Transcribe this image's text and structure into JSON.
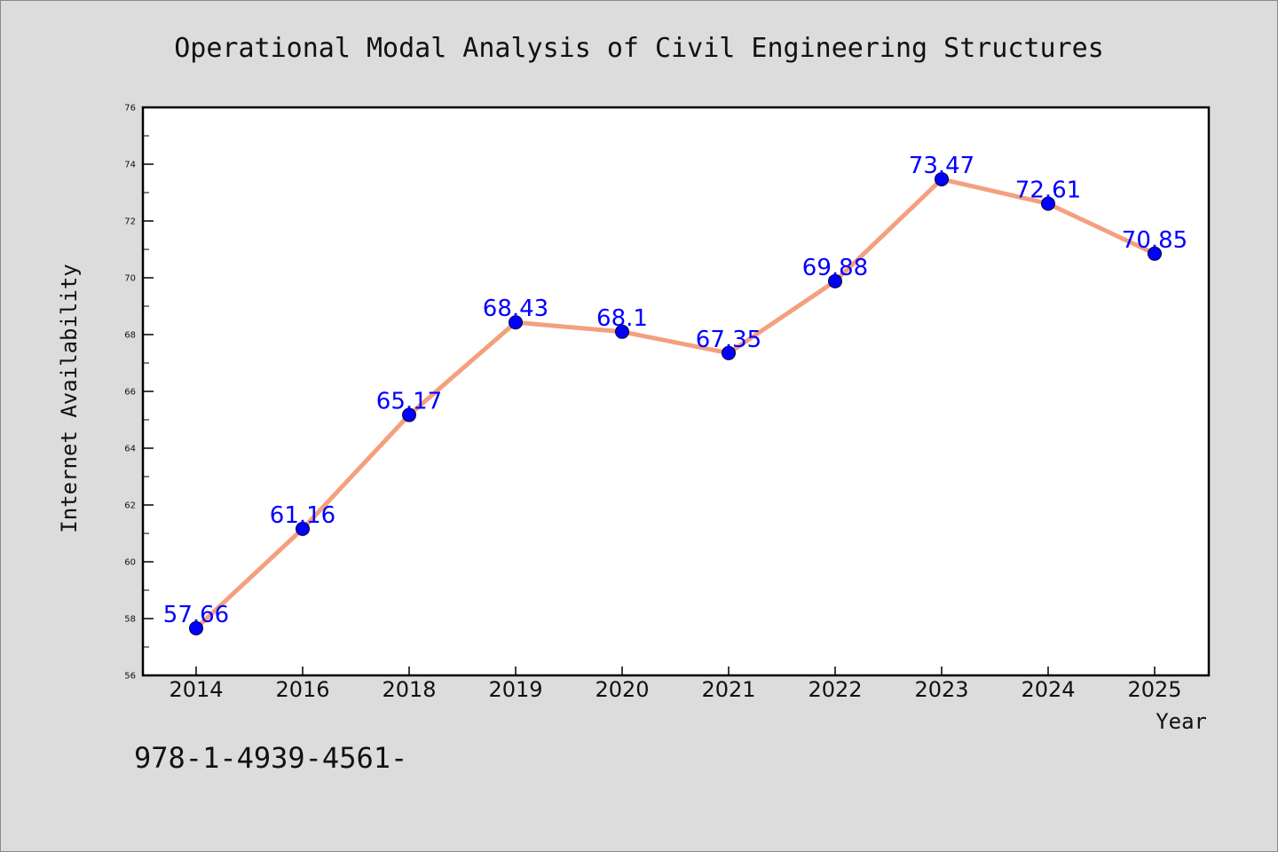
{
  "caption": "978-1-4939-4561-",
  "colors": {
    "line": "#f4a07f",
    "marker": "#0000ff",
    "data_label": "#0000ff",
    "plot_background": "#ffffff",
    "figure_background": "#dcdcdc"
  },
  "chart_data": {
    "type": "line",
    "title": "Operational Modal Analysis of Civil Engineering Structures",
    "xlabel": "Year",
    "ylabel": "Internet Availability",
    "categories": [
      "2014",
      "2016",
      "2018",
      "2019",
      "2020",
      "2021",
      "2022",
      "2023",
      "2024",
      "2025"
    ],
    "values": [
      57.66,
      61.16,
      65.17,
      68.43,
      68.1,
      67.35,
      69.88,
      73.47,
      72.61,
      70.85
    ],
    "data_labels": [
      "57.66",
      "61.16",
      "65.17",
      "68.43",
      "68.1",
      "67.35",
      "69.88",
      "73.47",
      "72.61",
      "70.85"
    ],
    "ylim": [
      56,
      76
    ],
    "yticks": [
      "56",
      "58",
      "60",
      "62",
      "64",
      "66",
      "68",
      "70",
      "72",
      "74",
      "76"
    ],
    "grid": false,
    "legend": "none",
    "marker": "circle"
  }
}
